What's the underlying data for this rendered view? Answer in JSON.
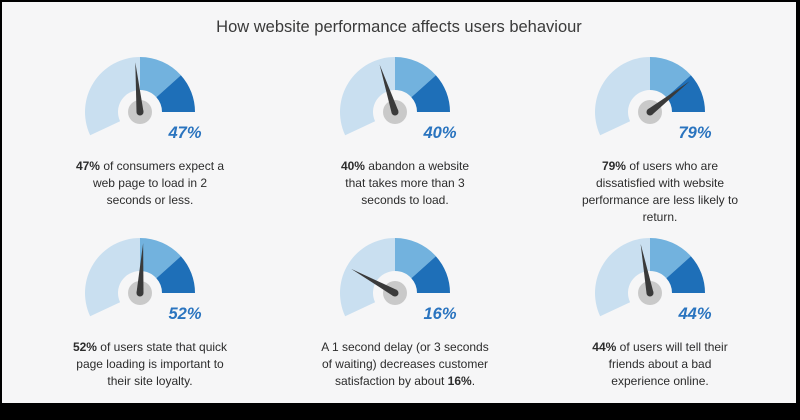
{
  "title": "How website performance affects users behaviour",
  "colors": {
    "outer_arc": "#c9dff0",
    "mid_segment": "#72b2de",
    "dark_segment": "#1e6fb8",
    "hub": "#c9c9c9",
    "needle": "#3a3a3a",
    "percent_text": "#2a74bf"
  },
  "gauges": [
    {
      "percent_label": "47%",
      "needle_value": 47,
      "caption_parts": [
        {
          "text": "47%",
          "bold": true
        },
        {
          "text": " of consumers expect a web page to load in 2 seconds or less.",
          "bold": false
        }
      ]
    },
    {
      "percent_label": "40%",
      "needle_value": 40,
      "caption_parts": [
        {
          "text": "40%",
          "bold": true
        },
        {
          "text": " abandon a website that takes more than 3 seconds to load.",
          "bold": false
        }
      ]
    },
    {
      "percent_label": "79%",
      "needle_value": 79,
      "caption_parts": [
        {
          "text": "79%",
          "bold": true
        },
        {
          "text": " of users who are dissatisfied with website performance are less likely to return.",
          "bold": false
        }
      ]
    },
    {
      "percent_label": "52%",
      "needle_value": 52,
      "caption_parts": [
        {
          "text": "52%",
          "bold": true
        },
        {
          "text": " of users state that quick page loading is important to their site loyalty.",
          "bold": false
        }
      ]
    },
    {
      "percent_label": "16%",
      "needle_value": 16,
      "caption_parts": [
        {
          "text": "A 1 second delay (or 3 seconds of waiting) decreases customer satisfaction by about ",
          "bold": false
        },
        {
          "text": "16%",
          "bold": true
        },
        {
          "text": ".",
          "bold": false
        }
      ]
    },
    {
      "percent_label": "44%",
      "needle_value": 44,
      "caption_parts": [
        {
          "text": "44%",
          "bold": true
        },
        {
          "text": " of users will tell their friends about a bad experience online.",
          "bold": false
        }
      ]
    }
  ]
}
